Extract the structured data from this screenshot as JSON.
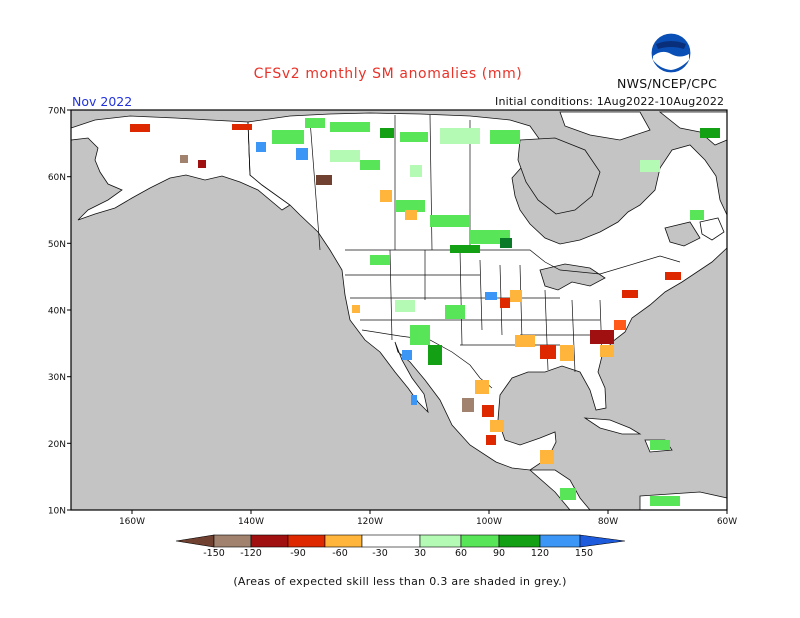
{
  "header": {
    "title": "CFSv2 monthly SM anomalies (mm)",
    "month": "Nov 2022",
    "agency": "NWS/NCEP/CPC",
    "initial_conditions": "Initial conditions: 1Aug2022-10Aug2022",
    "logo_text": "NOAA"
  },
  "map": {
    "lat_labels": [
      "70N",
      "60N",
      "50N",
      "40N",
      "30N",
      "20N",
      "10N"
    ],
    "lon_labels": [
      "160W",
      "140W",
      "120W",
      "100W",
      "80W",
      "60W"
    ],
    "colors": {
      "land": "#ffffff",
      "ocean_and_low_skill": "#c4c4c4",
      "coastline": "#000000"
    }
  },
  "colorbar": {
    "labels": [
      "-150",
      "-120",
      "-90",
      "-60",
      "-30",
      "30",
      "60",
      "90",
      "120",
      "150"
    ],
    "colors": [
      "#704030",
      "#a0826e",
      "#a01010",
      "#dd2800",
      "#ff5a1a",
      "#ffb43c",
      "#ffffff",
      "#b4fab4",
      "#58e658",
      "#14a014",
      "#0a7a28",
      "#3c96f5",
      "#1e5adc"
    ]
  },
  "footnote": "(Areas of expected skill less than 0.3 are shaded in grey.)"
}
